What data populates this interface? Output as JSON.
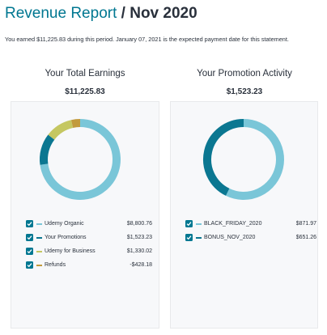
{
  "header": {
    "link_text": "Revenue Report",
    "separator": "/",
    "period": "Nov 2020"
  },
  "intro_text": "You earned $11,225.83 during this period. January 07, 2021 is the expected payment date for this statement.",
  "earnings": {
    "heading": "Your Total Earnings",
    "total": "$11,225.83",
    "items": [
      {
        "label": "Udemy Organic",
        "value": "$8,800.76",
        "amount": 8800.76,
        "color": "#7ac6d8",
        "checked": true
      },
      {
        "label": "Your Promotions",
        "value": "$1,523.23",
        "amount": 1523.23,
        "color": "#0b7791",
        "checked": true
      },
      {
        "label": "Udemy for Business",
        "value": "$1,330.02",
        "amount": 1330.02,
        "color": "#c5c761",
        "checked": true
      },
      {
        "label": "Refunds",
        "value": "-$428.18",
        "amount": 428.18,
        "color": "#c29a3c",
        "checked": true
      }
    ]
  },
  "promotion": {
    "heading": "Your Promotion Activity",
    "total": "$1,523.23",
    "items": [
      {
        "label": "BLACK_FRIDAY_2020",
        "value": "$871.97",
        "amount": 871.97,
        "color": "#7ac6d8",
        "checked": true
      },
      {
        "label": "BONUS_NOV_2020",
        "value": "$651.26",
        "amount": 651.26,
        "color": "#0b7791",
        "checked": true
      }
    ]
  },
  "colors": {
    "link": "#007791",
    "checkbox": "#007791",
    "card_bg": "#f7f8fa"
  }
}
